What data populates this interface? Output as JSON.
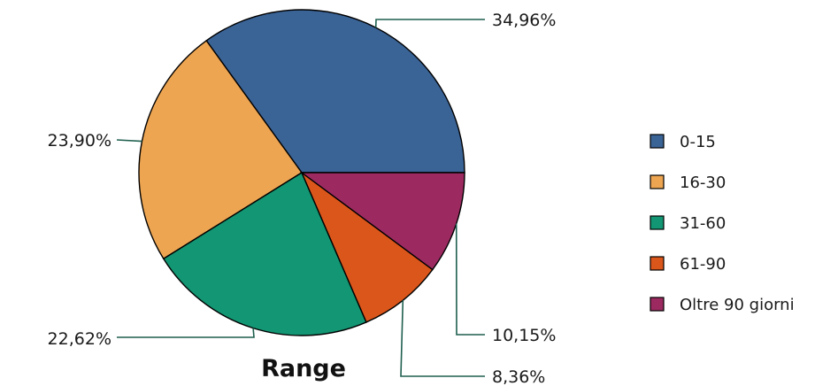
{
  "chart_data": {
    "type": "pie",
    "title": "Range",
    "legend_position": "right",
    "slices": [
      {
        "label": "0-15",
        "value": 34.96,
        "display": "34,96%",
        "color": "#3a6396"
      },
      {
        "label": "16-30",
        "value": 23.9,
        "display": "23,90%",
        "color": "#eda552"
      },
      {
        "label": "31-60",
        "value": 22.62,
        "display": "22,62%",
        "color": "#139673"
      },
      {
        "label": "61-90",
        "value": 8.36,
        "display": "8,36%",
        "color": "#db561b"
      },
      {
        "label": "Oltre 90 giorni",
        "value": 10.15,
        "display": "10,15%",
        "color": "#9c2a61"
      }
    ]
  }
}
